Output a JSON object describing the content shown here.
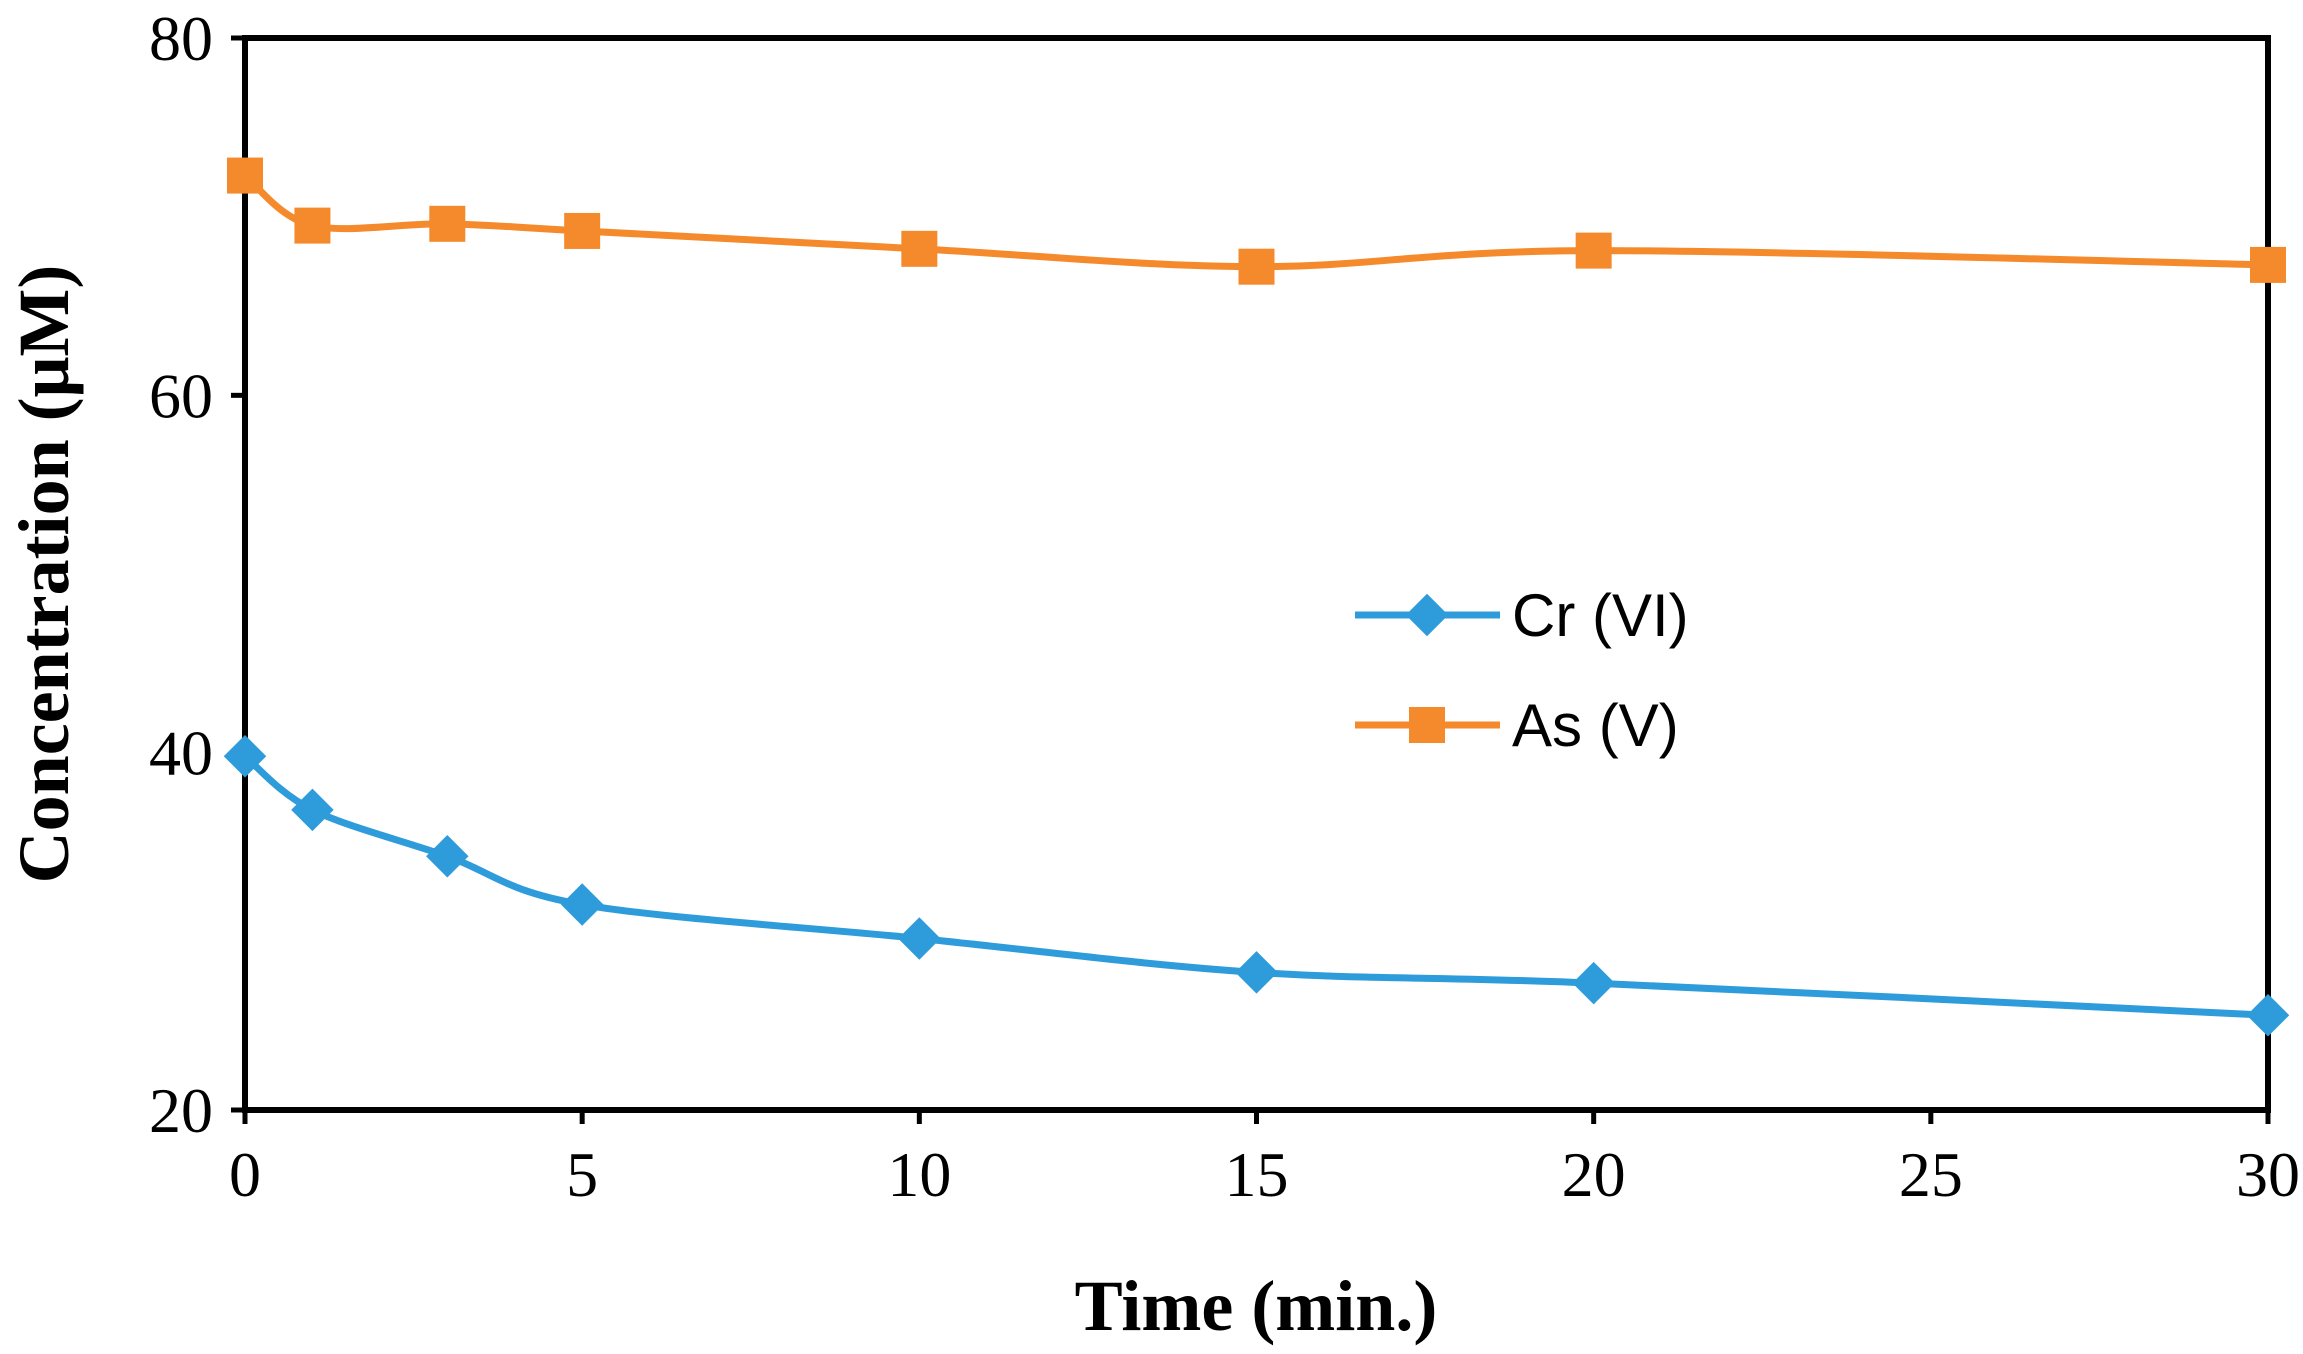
{
  "chart_data": {
    "type": "line",
    "title": "",
    "xlabel": "Time (min.)",
    "ylabel": "Concentration (μM)",
    "xlim": [
      0,
      30
    ],
    "ylim": [
      20,
      80
    ],
    "xticks": [
      0,
      5,
      10,
      15,
      20,
      25,
      30
    ],
    "yticks": [
      20,
      40,
      60,
      80
    ],
    "grid": false,
    "legend_position": "center-right",
    "series": [
      {
        "name": "Cr (VI)",
        "color": "#2E9CDB",
        "marker": "diamond",
        "x": [
          0,
          1,
          3,
          5,
          10,
          15,
          20,
          30
        ],
        "y": [
          39.8,
          36.8,
          34.2,
          31.5,
          29.6,
          27.7,
          27.1,
          25.3
        ]
      },
      {
        "name": "As (V)",
        "color": "#F58A2C",
        "marker": "square",
        "x": [
          0,
          1,
          3,
          5,
          10,
          15,
          20,
          30
        ],
        "y": [
          72.3,
          69.5,
          69.6,
          69.2,
          68.2,
          67.2,
          68.1,
          67.3
        ]
      }
    ]
  }
}
